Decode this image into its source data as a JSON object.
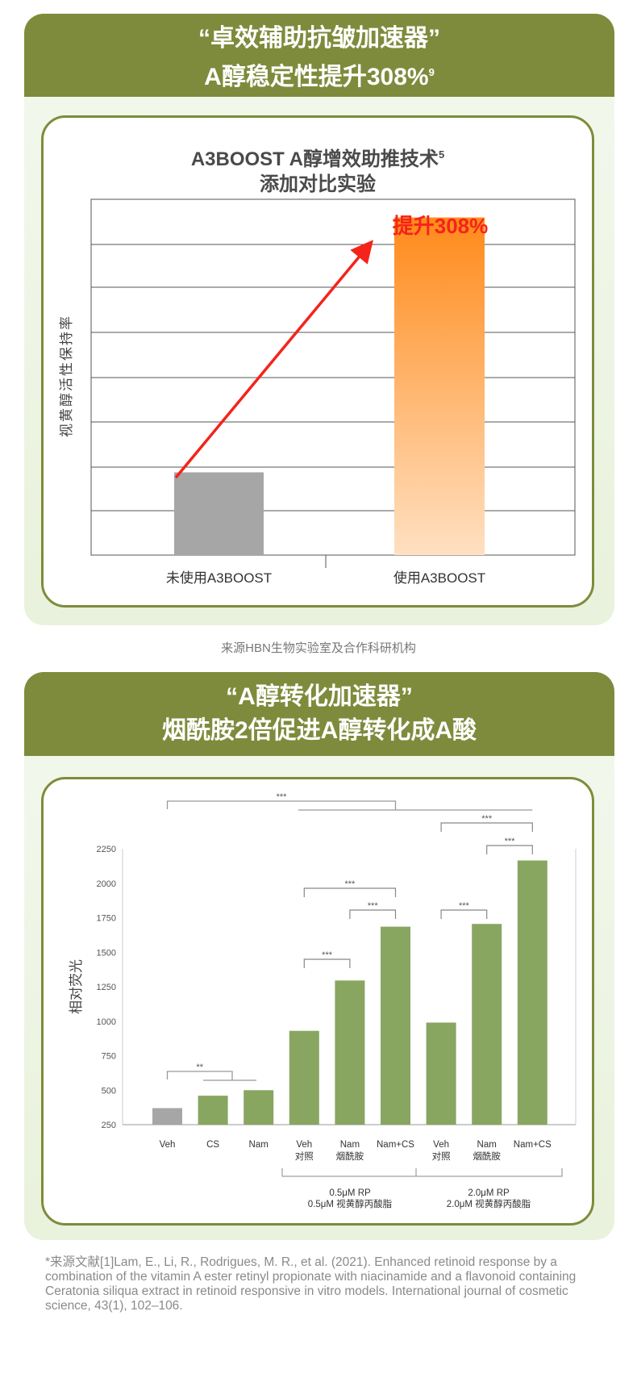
{
  "section1": {
    "header_line1": "“卓效辅助抗皱加速器”",
    "header_line2": "A醇稳定性提升308%",
    "header_sup": "9",
    "chart_title_line1": "A3BOOST A醇增效助推技术",
    "chart_title_sup": "5",
    "chart_title_line2": "添加对比实验",
    "source": "来源HBN生物实验室及合作科研机构"
  },
  "section2": {
    "header_line1": "“A醇转化加速器”",
    "header_line2": "烟酰胺2倍促进A醇转化成A酸"
  },
  "footnote": "*来源文献[1]Lam, E., Li, R., Rodrigues, M. R., et al. (2021). Enhanced retinoid response by a combination of the vitamin A ester retinyl propionate with niacinamide and a flavonoid containing Ceratonia siliqua extract in retinoid responsive in vitro models. International journal of cosmetic science, 43(1), 102–106.",
  "colors": {
    "header_green": "#7f8b3c",
    "bar_green": "#88a660",
    "bar_gray": "#a6a6a6",
    "orange_top": "#ff8a1a",
    "orange_bottom": "#ffe0c2",
    "arrow_red": "#f5231b"
  },
  "chart_data": [
    {
      "type": "bar",
      "title": "A3BOOST A醇增效助推技术 添加对比实验",
      "ylabel": "视黄醇活性保持率",
      "categories": [
        "未使用A3BOOST",
        "使用A3BOOST"
      ],
      "values": [
        1,
        4.08
      ],
      "annotation": "提升308%",
      "grid": true,
      "y_ticks_shown": false
    },
    {
      "type": "bar",
      "ylabel": "相对荧光",
      "ylim": [
        250,
        2250
      ],
      "yticks": [
        "2250",
        "2000",
        "1750",
        "1500",
        "1250",
        "1000",
        "750",
        "500",
        "250"
      ],
      "categories": [
        {
          "line1": "Veh",
          "line2": ""
        },
        {
          "line1": "CS",
          "line2": ""
        },
        {
          "line1": "Nam",
          "line2": ""
        },
        {
          "line1": "Veh",
          "line2": "对照"
        },
        {
          "line1": "Nam",
          "line2": "烟酰胺"
        },
        {
          "line1": "Nam+CS",
          "line2": ""
        },
        {
          "line1": "Veh",
          "line2": "对照"
        },
        {
          "line1": "Nam",
          "line2": "烟酰胺"
        },
        {
          "line1": "Nam+CS",
          "line2": ""
        }
      ],
      "values": [
        370,
        460,
        500,
        930,
        1295,
        1685,
        990,
        1705,
        2165
      ],
      "groups": [
        {
          "line1": "0.5μM RP",
          "line2": "0.5μM 视黄醇丙酸脂",
          "from": 3,
          "to": 5
        },
        {
          "line1": "2.0μM RP",
          "line2": "2.0μM 视黄醇丙酸脂",
          "from": 6,
          "to": 8
        }
      ],
      "significance": [
        {
          "label": "***",
          "from": 0,
          "to": [
            3,
            8
          ]
        },
        {
          "label": "***",
          "from": 6,
          "to": 8
        },
        {
          "label": "***",
          "from": 7,
          "to": 8
        },
        {
          "label": "***",
          "from": 3,
          "to": 5
        },
        {
          "label": "***",
          "from": 4,
          "to": 5
        },
        {
          "label": "***",
          "from": 6,
          "to": 7
        },
        {
          "label": "***",
          "from": 3,
          "to": 4
        },
        {
          "label": "**",
          "from": 0,
          "to": [
            1,
            2
          ]
        }
      ],
      "grid": false
    }
  ]
}
